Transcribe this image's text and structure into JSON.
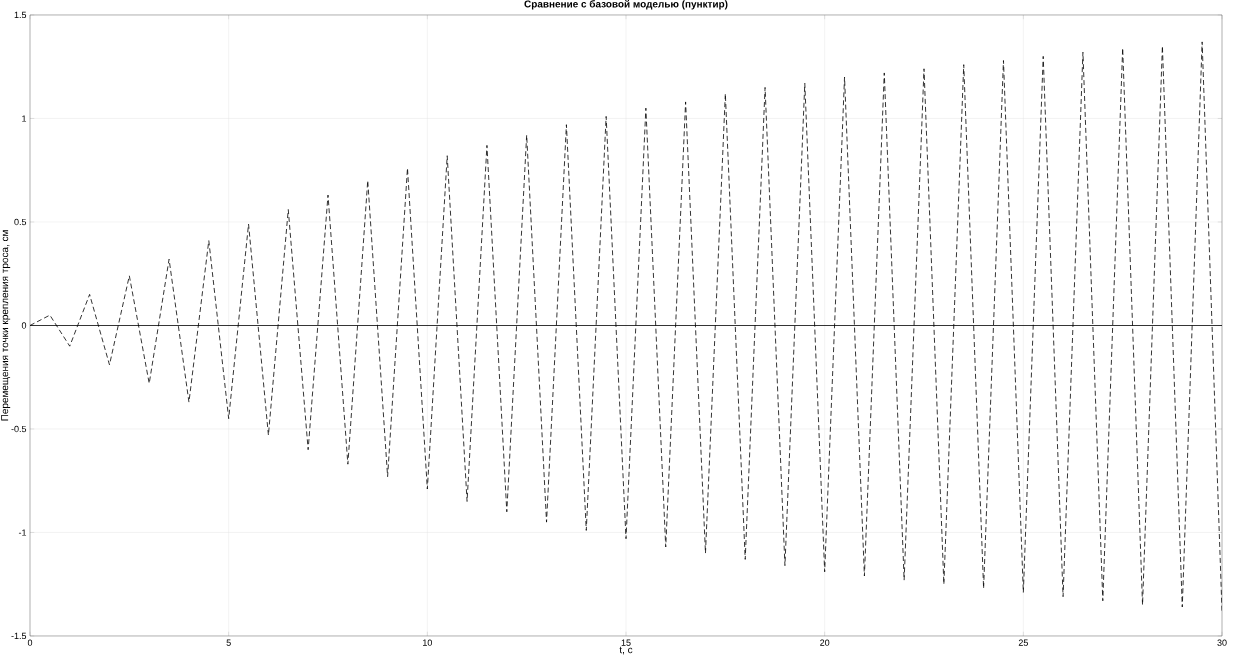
{
  "chart_data": {
    "type": "line",
    "title": "Сравнение с базовой моделью (пунктир)",
    "xlabel": "t, c",
    "ylabel": "Перемещения точки крепления троса, см",
    "xlim": [
      0,
      30
    ],
    "ylim": [
      -1.5,
      1.5
    ],
    "xticks": [
      0,
      5,
      10,
      15,
      20,
      25,
      30
    ],
    "yticks": [
      -1.5,
      -1,
      -0.5,
      0,
      0.5,
      1,
      1.5
    ],
    "grid": true,
    "series": [
      {
        "color": "#000000",
        "line_style": "dashed",
        "x": [
          0,
          0.5,
          1,
          1.5,
          2,
          2.5,
          3,
          3.5,
          4,
          4.5,
          5,
          5.5,
          6,
          6.5,
          7,
          7.5,
          8,
          8.5,
          9,
          9.5,
          10,
          10.5,
          11,
          11.5,
          12,
          12.5,
          13,
          13.5,
          14,
          14.5,
          15,
          15.5,
          16,
          16.5,
          17,
          17.5,
          18,
          18.5,
          19,
          19.5,
          20,
          20.5,
          21,
          21.5,
          22,
          22.5,
          23,
          23.5,
          24,
          24.5,
          25,
          25.5,
          26,
          26.5,
          27,
          27.5,
          28,
          28.5,
          29,
          29.5,
          30
        ],
        "values": [
          0,
          0.05,
          -0.1,
          0.15,
          -0.19,
          0.24,
          -0.28,
          0.32,
          -0.37,
          0.41,
          -0.45,
          0.49,
          -0.53,
          0.56,
          -0.6,
          0.63,
          -0.67,
          0.7,
          -0.73,
          0.76,
          -0.79,
          0.82,
          -0.85,
          0.87,
          -0.9,
          0.92,
          -0.95,
          0.97,
          -0.99,
          1.01,
          -1.03,
          1.05,
          -1.07,
          1.08,
          -1.1,
          1.12,
          -1.13,
          1.15,
          -1.16,
          1.17,
          -1.19,
          1.2,
          -1.21,
          1.22,
          -1.23,
          1.24,
          -1.25,
          1.26,
          -1.27,
          1.28,
          -1.29,
          1.3,
          -1.31,
          1.32,
          -1.33,
          1.34,
          -1.35,
          1.35,
          -1.36,
          1.37,
          -1.38
        ]
      },
      {
        "color": "#000000",
        "line_style": "solid",
        "x": [
          0,
          30
        ],
        "values": [
          0,
          0
        ]
      }
    ]
  }
}
